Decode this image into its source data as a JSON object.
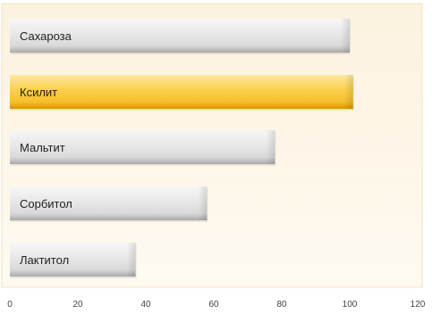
{
  "chart_data": {
    "type": "bar",
    "orientation": "horizontal",
    "title": "",
    "xlabel": "",
    "ylabel": "",
    "categories": [
      "Сахароза",
      "Ксилит",
      "Мальтит",
      "Сорбитол",
      "Лактитол"
    ],
    "values": [
      100,
      101,
      78,
      58,
      37
    ],
    "highlighted_category": "Ксилит",
    "xlim": [
      0,
      120
    ],
    "x_ticks": [
      0,
      20,
      40,
      60,
      80,
      100,
      120
    ],
    "tick_labels": [
      "0",
      "20",
      "40",
      "60",
      "80",
      "100",
      "120"
    ],
    "grid": false,
    "legend": "none",
    "colors": {
      "background_top": "#fbf2df",
      "background_bottom": "#fffaf1",
      "background_border": "#f3e2bf",
      "bar_gray_light": "#f7f7f7",
      "bar_gray_mid": "#d9d9d9",
      "bar_gray_dark": "#a9a9a9",
      "bar_gold_light": "#ffe9a0",
      "bar_gold_mid": "#f5bf2a",
      "bar_gold_dark": "#d99400"
    }
  }
}
